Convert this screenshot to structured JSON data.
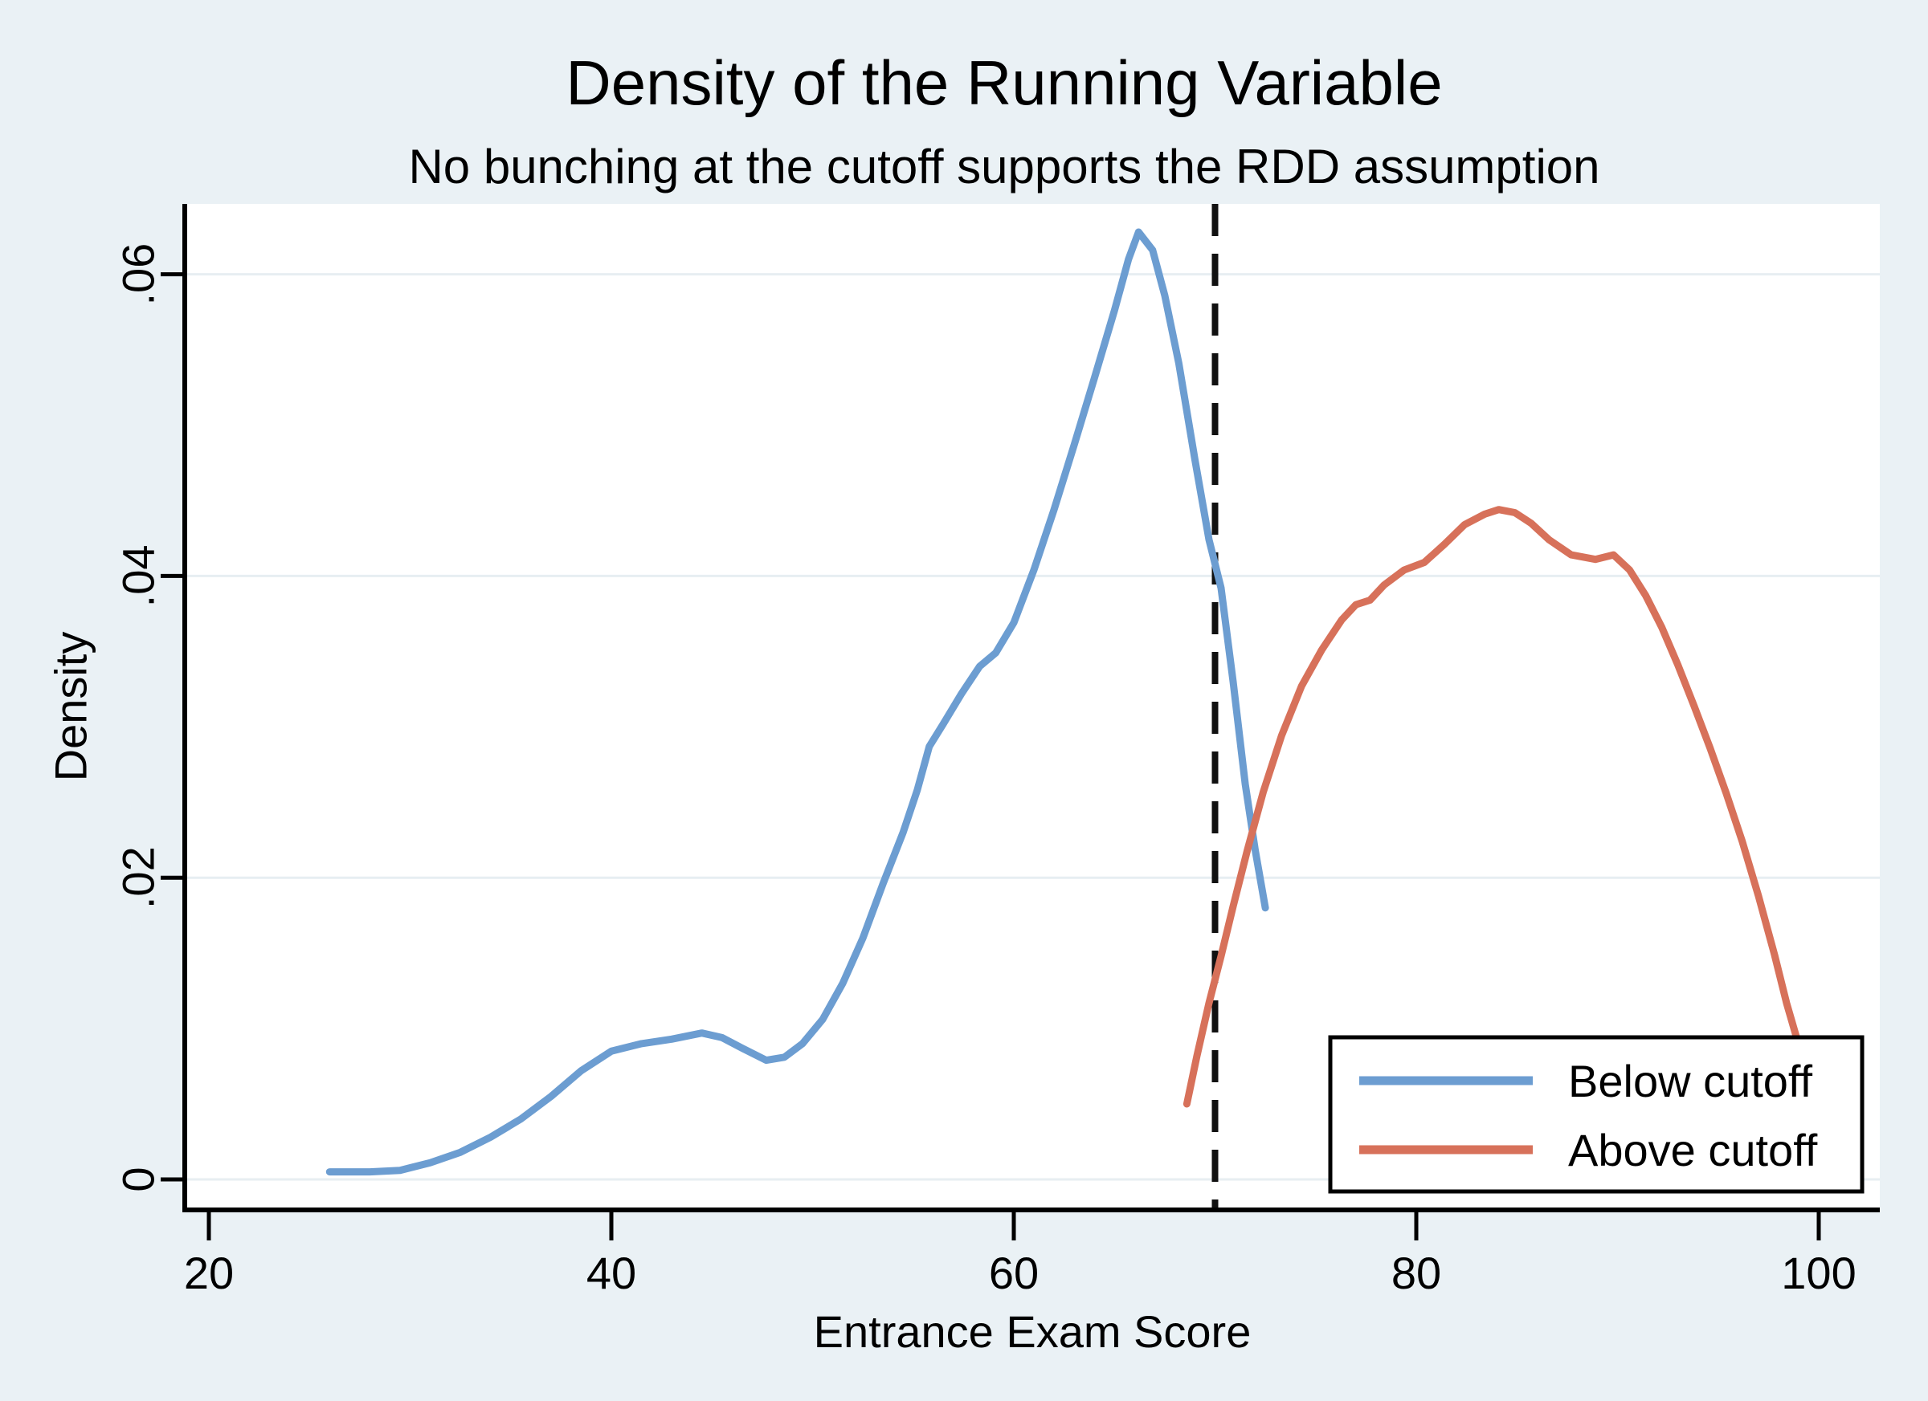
{
  "figure": {
    "title": "Density of the Running Variable",
    "subtitle": "No bunching at the cutoff supports the RDD assumption",
    "title_color": "#263a59",
    "background_color": "#eaf1f5",
    "plot_background_color": "#ffffff",
    "gridline_color": "#e7eef2"
  },
  "chart_data": {
    "type": "line",
    "title": "Density of the Running Variable",
    "subtitle": "No bunching at the cutoff supports the RDD assumption",
    "xlabel": "Entrance Exam Score",
    "ylabel": "Density",
    "xlim": [
      18.6,
      103
    ],
    "ylim": [
      0,
      0.0647
    ],
    "grid": "horizontal",
    "xticks": {
      "values": [
        20,
        40,
        60,
        80,
        100
      ],
      "labels": [
        "20",
        "40",
        "60",
        "80",
        "100"
      ]
    },
    "yticks": {
      "values": [
        0,
        0.02,
        0.04,
        0.06
      ],
      "labels": [
        "0",
        ".02",
        ".04",
        ".06"
      ]
    },
    "cutoff_line": {
      "x": 70,
      "style": "dashed",
      "color": "#111111"
    },
    "legend": {
      "position": "bottom-right",
      "entries": [
        {
          "label": "Below cutoff",
          "color": "#6c9dd1"
        },
        {
          "label": "Above cutoff",
          "color": "#d7715a"
        }
      ]
    },
    "series": [
      {
        "name": "Below cutoff",
        "color": "#6c9dd1",
        "points": [
          [
            26,
            0.0005
          ],
          [
            28,
            0.0005
          ],
          [
            29.5,
            0.0006
          ],
          [
            31,
            0.0011
          ],
          [
            32.5,
            0.0018
          ],
          [
            34,
            0.0028
          ],
          [
            35.5,
            0.004
          ],
          [
            37,
            0.0055
          ],
          [
            38.5,
            0.0072
          ],
          [
            40,
            0.0085
          ],
          [
            41.5,
            0.009
          ],
          [
            43,
            0.0093
          ],
          [
            44.5,
            0.0097
          ],
          [
            45.5,
            0.0094
          ],
          [
            46.5,
            0.0087
          ],
          [
            47.7,
            0.0079
          ],
          [
            48.6,
            0.0081
          ],
          [
            49.5,
            0.009
          ],
          [
            50.5,
            0.0106
          ],
          [
            51.5,
            0.013
          ],
          [
            52.5,
            0.016
          ],
          [
            53.5,
            0.0196
          ],
          [
            54.5,
            0.023
          ],
          [
            55.2,
            0.0258
          ],
          [
            55.8,
            0.0287
          ],
          [
            56.5,
            0.0302
          ],
          [
            57.4,
            0.0322
          ],
          [
            58.3,
            0.034
          ],
          [
            59.1,
            0.0349
          ],
          [
            60,
            0.0369
          ],
          [
            61,
            0.0404
          ],
          [
            62,
            0.0444
          ],
          [
            63,
            0.0487
          ],
          [
            64,
            0.0531
          ],
          [
            65,
            0.0576
          ],
          [
            65.7,
            0.061
          ],
          [
            66.2,
            0.0628
          ],
          [
            66.9,
            0.0616
          ],
          [
            67.5,
            0.0586
          ],
          [
            68.2,
            0.0541
          ],
          [
            69,
            0.0477
          ],
          [
            69.7,
            0.0424
          ],
          [
            70.3,
            0.0392
          ],
          [
            70.9,
            0.033
          ],
          [
            71.5,
            0.0262
          ],
          [
            72,
            0.0218
          ],
          [
            72.5,
            0.018
          ]
        ]
      },
      {
        "name": "Above cutoff",
        "color": "#d7715a",
        "points": [
          [
            68.6,
            0.005
          ],
          [
            69.1,
            0.0082
          ],
          [
            69.7,
            0.0117
          ],
          [
            70.3,
            0.0148
          ],
          [
            70.9,
            0.0181
          ],
          [
            71.6,
            0.0218
          ],
          [
            72.4,
            0.0257
          ],
          [
            73.3,
            0.0294
          ],
          [
            74.3,
            0.0327
          ],
          [
            75.3,
            0.0351
          ],
          [
            76.3,
            0.0371
          ],
          [
            77,
            0.0381
          ],
          [
            77.7,
            0.0384
          ],
          [
            78.4,
            0.0394
          ],
          [
            79.4,
            0.0404
          ],
          [
            80.4,
            0.0409
          ],
          [
            81.4,
            0.0421
          ],
          [
            82.4,
            0.0434
          ],
          [
            83.4,
            0.0441
          ],
          [
            84.1,
            0.0444
          ],
          [
            84.9,
            0.0442
          ],
          [
            85.7,
            0.0435
          ],
          [
            86.6,
            0.0424
          ],
          [
            87.7,
            0.0414
          ],
          [
            88.9,
            0.0411
          ],
          [
            89.8,
            0.0414
          ],
          [
            90.6,
            0.0404
          ],
          [
            91.4,
            0.0387
          ],
          [
            92.2,
            0.0366
          ],
          [
            93,
            0.0341
          ],
          [
            93.8,
            0.0314
          ],
          [
            94.6,
            0.0286
          ],
          [
            95.4,
            0.0256
          ],
          [
            96.2,
            0.0224
          ],
          [
            97,
            0.0188
          ],
          [
            97.8,
            0.0149
          ],
          [
            98.4,
            0.0117
          ],
          [
            98.9,
            0.0094
          ]
        ]
      }
    ]
  }
}
